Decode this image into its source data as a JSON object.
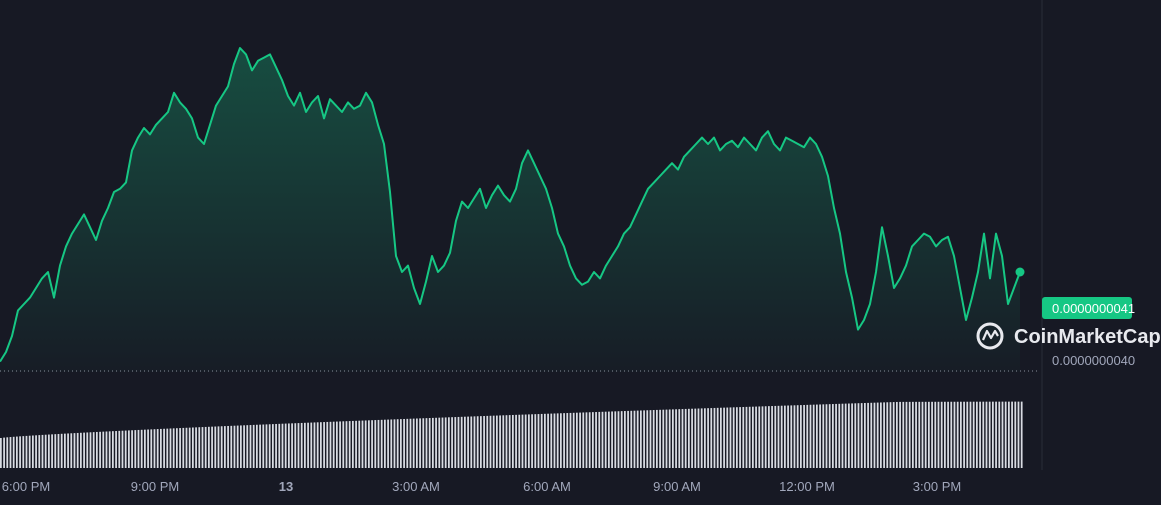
{
  "chart_data": {
    "type": "area",
    "x_tick_labels": [
      "6:00 PM",
      "9:00 PM",
      "13",
      "3:00 AM",
      "6:00 AM",
      "9:00 AM",
      "12:00 PM",
      "3:00 PM"
    ],
    "price_axis": {
      "current_price": "0.0000000041",
      "reference_price": "0.0000000040"
    },
    "watermark": "CoinMarketCap",
    "colors": {
      "line": "#16c784",
      "current_price_badge": "#16c784",
      "background": "#171924",
      "volume_bars": "#d9dce3",
      "axis_text": "#a1a7bb"
    },
    "ylim": [
      0,
      1
    ],
    "y": [
      0.02,
      0.05,
      0.1,
      0.18,
      0.2,
      0.22,
      0.25,
      0.28,
      0.3,
      0.22,
      0.32,
      0.38,
      0.42,
      0.45,
      0.48,
      0.44,
      0.4,
      0.46,
      0.5,
      0.55,
      0.56,
      0.58,
      0.68,
      0.72,
      0.75,
      0.73,
      0.76,
      0.78,
      0.8,
      0.86,
      0.83,
      0.81,
      0.78,
      0.72,
      0.7,
      0.76,
      0.82,
      0.85,
      0.88,
      0.95,
      1.0,
      0.98,
      0.93,
      0.96,
      0.97,
      0.98,
      0.94,
      0.9,
      0.85,
      0.82,
      0.86,
      0.8,
      0.83,
      0.85,
      0.78,
      0.84,
      0.82,
      0.8,
      0.83,
      0.81,
      0.82,
      0.86,
      0.83,
      0.76,
      0.7,
      0.55,
      0.35,
      0.3,
      0.32,
      0.25,
      0.2,
      0.27,
      0.35,
      0.3,
      0.32,
      0.36,
      0.46,
      0.52,
      0.5,
      0.53,
      0.56,
      0.5,
      0.54,
      0.57,
      0.54,
      0.52,
      0.56,
      0.64,
      0.68,
      0.64,
      0.6,
      0.56,
      0.5,
      0.42,
      0.38,
      0.32,
      0.28,
      0.26,
      0.27,
      0.3,
      0.28,
      0.32,
      0.35,
      0.38,
      0.42,
      0.44,
      0.48,
      0.52,
      0.56,
      0.58,
      0.6,
      0.62,
      0.64,
      0.62,
      0.66,
      0.68,
      0.7,
      0.72,
      0.7,
      0.72,
      0.68,
      0.7,
      0.71,
      0.69,
      0.72,
      0.7,
      0.68,
      0.72,
      0.74,
      0.7,
      0.68,
      0.72,
      0.71,
      0.7,
      0.69,
      0.72,
      0.7,
      0.66,
      0.6,
      0.5,
      0.42,
      0.3,
      0.22,
      0.12,
      0.15,
      0.2,
      0.3,
      0.44,
      0.35,
      0.25,
      0.28,
      0.32,
      0.38,
      0.4,
      0.42,
      0.41,
      0.38,
      0.4,
      0.41,
      0.35,
      0.25,
      0.15,
      0.22,
      0.3,
      0.42,
      0.28,
      0.42,
      0.35,
      0.2,
      0.25,
      0.3
    ]
  }
}
